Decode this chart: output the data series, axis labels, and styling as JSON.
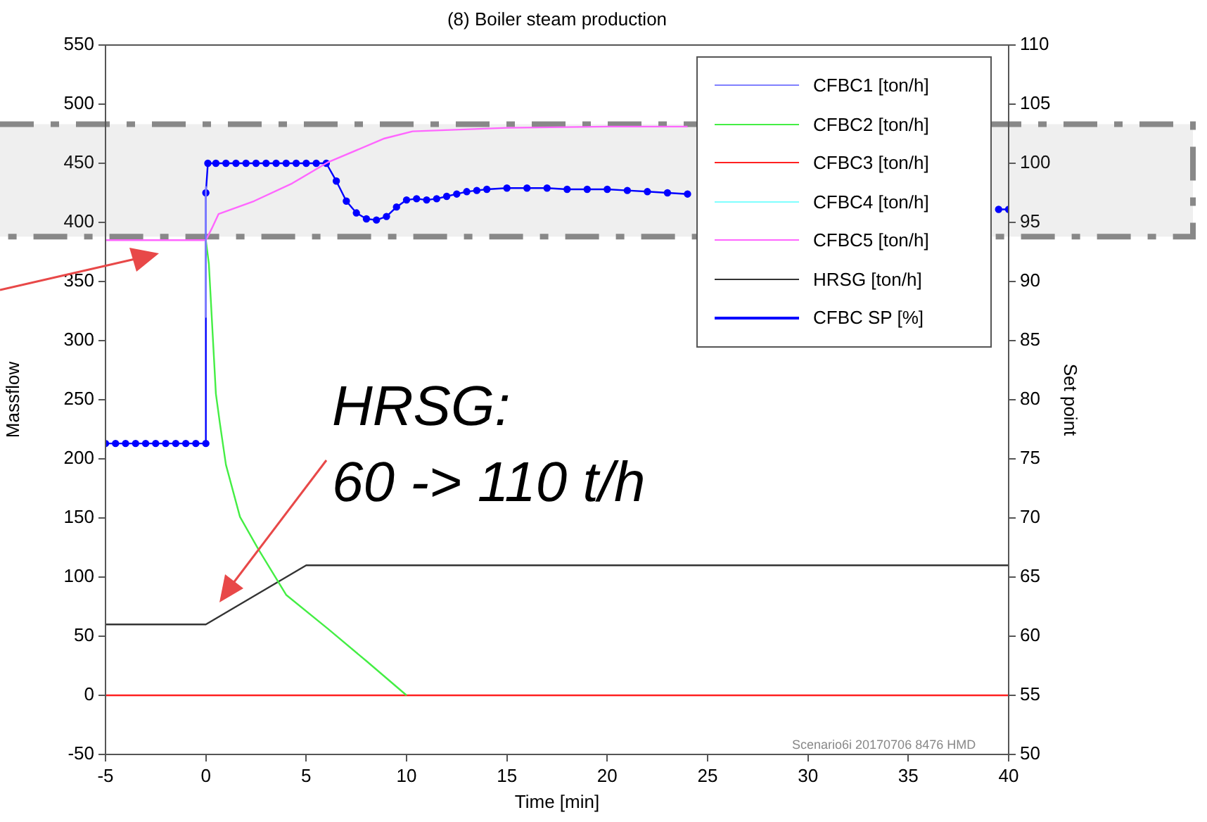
{
  "chart_data": {
    "type": "line",
    "title": "(8) Boiler steam production",
    "xlabel": "Time [min]",
    "ylabel": "Massflow",
    "y2label": "Set point",
    "xlim": [
      -5,
      40
    ],
    "xticks": [
      -5,
      0,
      5,
      10,
      15,
      20,
      25,
      30,
      35,
      40
    ],
    "ylim": [
      -50,
      550
    ],
    "yticks": [
      -50,
      0,
      50,
      100,
      150,
      200,
      250,
      300,
      350,
      400,
      450,
      500,
      550
    ],
    "y2lim": [
      50,
      110
    ],
    "y2ticks": [
      50,
      55,
      60,
      65,
      70,
      75,
      80,
      85,
      90,
      95,
      100,
      105,
      110
    ],
    "grid": false,
    "legend": "top right",
    "marker": "none",
    "line_style": "solid",
    "bands": [
      {
        "axis": "y",
        "from": 388,
        "to": 483,
        "color": "#888888"
      }
    ],
    "annotations": [
      "HRSG:\n60 -> 110 t/h",
      "Scenario6i 20170706 8476 HMD"
    ],
    "series": [
      {
        "name": "CFBC1 [ton/h]",
        "color": "#8080ff",
        "x": [
          0,
          0
        ],
        "values": [
          430,
          320
        ]
      },
      {
        "name": "CFBC2 [ton/h]",
        "color": "#44ee44",
        "x": [
          0,
          0.15,
          0.5,
          0.7,
          1,
          1.7,
          2.6,
          4,
          6.1,
          8,
          10
        ],
        "values": [
          385,
          365,
          255,
          230,
          195,
          151,
          124,
          85,
          56,
          29,
          0
        ]
      },
      {
        "name": "CFBC3 [ton/h]",
        "color": "#ff2020",
        "x": [
          -5,
          40
        ],
        "values": [
          0,
          0
        ]
      },
      {
        "name": "CFBC4 [ton/h]",
        "color": "#80ffff"
      },
      {
        "name": "CFBC5 [ton/h]",
        "color": "#ff66ff",
        "x": [
          -5,
          0,
          0.3,
          0.63,
          2.4,
          4.3,
          6.1,
          8.9,
          10.3,
          15,
          20,
          24
        ],
        "values": [
          385,
          385,
          395,
          407,
          418,
          433,
          451,
          471,
          477,
          480,
          481,
          481
        ]
      },
      {
        "name": "HRSG [ton/h]",
        "color": "#333333",
        "x": [
          -5,
          0,
          5,
          40
        ],
        "values": [
          60,
          60,
          110,
          110
        ]
      },
      {
        "name": "CFBC SP [%]",
        "color": "#0000ff",
        "axis": "y2",
        "marker": "circle",
        "x": [
          -5,
          -4.5,
          -4,
          -3.5,
          -3,
          -2.5,
          -2,
          -1.5,
          -1,
          -0.5,
          0,
          0,
          0.1,
          0.5,
          1,
          1.5,
          2,
          2.5,
          3,
          3.5,
          4,
          4.5,
          5,
          5.5,
          6,
          6.5,
          7,
          7.5,
          8,
          8.5,
          9,
          9.5,
          10,
          10.5,
          11,
          11.5,
          12,
          12.5,
          13,
          13.5,
          14,
          15,
          16,
          17,
          18,
          19,
          20,
          21,
          22,
          23,
          24,
          25,
          26,
          27,
          28,
          29,
          30,
          31,
          32,
          33,
          34,
          35,
          36,
          37,
          38,
          39.5,
          40
        ],
        "values": [
          76.3,
          76.3,
          76.3,
          76.3,
          76.3,
          76.3,
          76.3,
          76.3,
          76.3,
          76.3,
          76.3,
          97.5,
          100,
          100,
          100,
          100,
          100,
          100,
          100,
          100,
          100,
          100,
          100,
          100,
          100,
          98.5,
          96.8,
          95.8,
          95.3,
          95.2,
          95.5,
          96.3,
          96.9,
          97.0,
          96.9,
          97.0,
          97.2,
          97.4,
          97.6,
          97.7,
          97.8,
          97.9,
          97.9,
          97.9,
          97.8,
          97.8,
          97.8,
          97.7,
          97.6,
          97.5,
          97.4,
          null,
          null,
          null,
          null,
          null,
          null,
          null,
          null,
          null,
          null,
          null,
          null,
          null,
          null,
          96.1,
          96.1
        ]
      }
    ]
  }
}
